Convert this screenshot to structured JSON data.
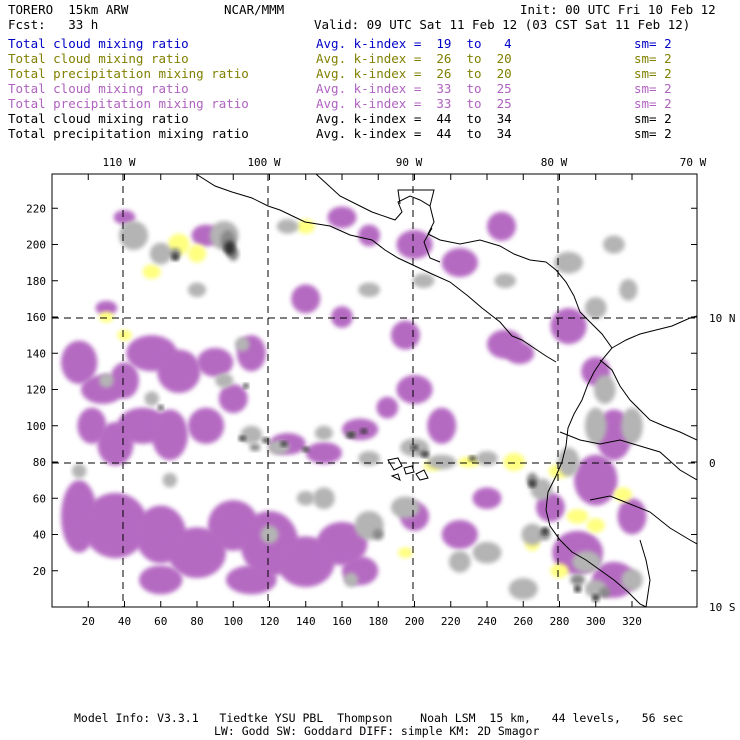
{
  "header": {
    "model": "TORERO  15km ARW",
    "org": "NCAR/MMM",
    "init": "Init: 00 UTC Fri 10 Feb 12",
    "fcst": "Fcst:   33 h",
    "valid": "Valid: 09 UTC Sat 11 Feb 12 (03 CST Sat 11 Feb 12)"
  },
  "legend": [
    {
      "label": "Total cloud mixing ratio",
      "kidx": "Avg. k-index =  19  to   4",
      "sm": "sm= 2",
      "color": "#0000c8"
    },
    {
      "label": "Total cloud mixing ratio",
      "kidx": "Avg. k-index =  26  to  20",
      "sm": "sm= 2",
      "color": "#808000"
    },
    {
      "label": "Total precipitation mixing ratio",
      "kidx": "Avg. k-index =  26  to  20",
      "sm": "sm= 2",
      "color": "#808000"
    },
    {
      "label": "Total cloud mixing ratio",
      "kidx": "Avg. k-index =  33  to  25",
      "sm": "sm= 2",
      "color": "#b062c0"
    },
    {
      "label": "Total precipitation mixing ratio",
      "kidx": "Avg. k-index =  33  to  25",
      "sm": "sm= 2",
      "color": "#b062c0"
    },
    {
      "label": "Total cloud mixing ratio",
      "kidx": "Avg. k-index =  44  to  34",
      "sm": "sm= 2",
      "color": "#000000"
    },
    {
      "label": "Total precipitation mixing ratio",
      "kidx": "Avg. k-index =  44  to  34",
      "sm": "sm= 2",
      "color": "#000000"
    }
  ],
  "axes": {
    "lon_labels": [
      "110 W",
      "100 W",
      "90 W",
      "80 W",
      "70 W"
    ],
    "lat_labels": [
      "10 N",
      "0",
      "10 S"
    ],
    "x_ticks": [
      "20",
      "40",
      "60",
      "80",
      "100",
      "120",
      "140",
      "160",
      "180",
      "200",
      "220",
      "240",
      "260",
      "280",
      "300",
      "320"
    ],
    "y_ticks": [
      "220",
      "200",
      "180",
      "160",
      "140",
      "120",
      "100",
      "80",
      "60",
      "40",
      "20"
    ]
  },
  "colors": {
    "purple": "#b56ac2",
    "yellow": "#ffff80",
    "gray_light": "#b4b4b4",
    "gray_mid": "#888888",
    "gray_dark": "#333333"
  },
  "footer": {
    "line1": "Model Info: V3.3.1   Tiedtke YSU PBL  Thompson    Noah LSM  15 km,   44 levels,   56 sec",
    "line2": "LW: Godd SW: Goddard DIFF: simple KM: 2D Smagor"
  }
}
